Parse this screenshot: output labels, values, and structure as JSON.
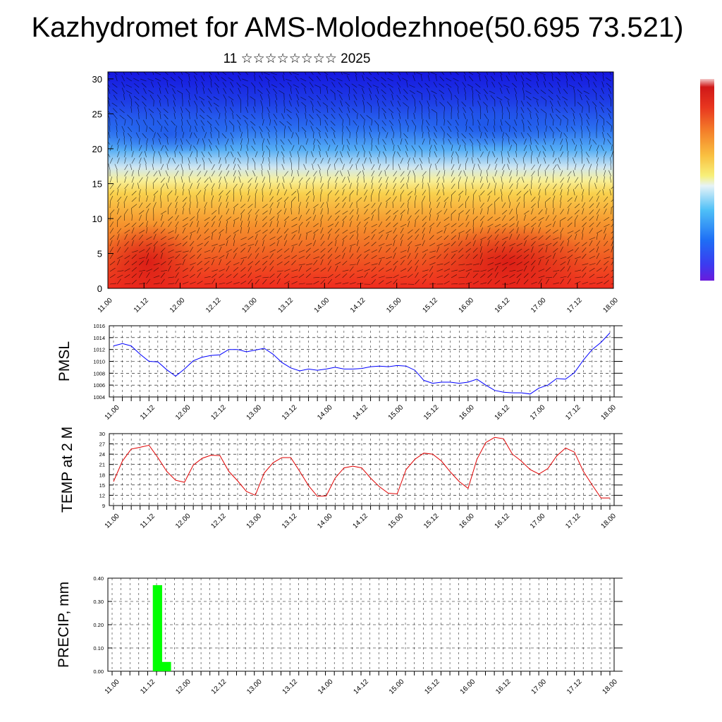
{
  "title": "Kazhydromet for AMS-Molodezhnoe(50.695 73.521)",
  "subtitle": "11 ☆☆☆☆☆☆☆☆ 2025",
  "colors": {
    "pmsl_line": "#0000ff",
    "temp_line": "#e00000",
    "precip_bar": "#00ff00",
    "grid": "#000000"
  },
  "chart_data": [
    {
      "type": "heatmap",
      "name": "cross-section",
      "xlabel": "",
      "ylabel": "",
      "x_tick_labels": [
        "11.00",
        "11.12",
        "12.00",
        "12.12",
        "13.00",
        "13.12",
        "14.00",
        "14.12",
        "15.00",
        "15.12",
        "16.00",
        "16.12",
        "17.00",
        "17.12",
        "18.00"
      ],
      "y_ticks": [
        0,
        5,
        10,
        15,
        20,
        25,
        30
      ],
      "ylim": [
        0,
        31
      ],
      "colorbar": [
        "#6a1bdc",
        "#3b3bf0",
        "#1e5ef5",
        "#2f8cf7",
        "#4fb6f7",
        "#bfe3f7",
        "#f7f7a8",
        "#f9e05a",
        "#f8b33a",
        "#f4872a",
        "#ef5a22",
        "#e8361f",
        "#d91c1c",
        "#c51a1a",
        "#f0c0c0"
      ],
      "wind_barbs": true
    },
    {
      "type": "line",
      "name": "pmsl",
      "ylabel": "PMSL",
      "ylim": [
        1004,
        1016
      ],
      "y_ticks": [
        1004,
        1006,
        1008,
        1010,
        1012,
        1014,
        1016
      ],
      "x_tick_labels": [
        "11.00",
        "11.12",
        "12.00",
        "12.12",
        "13.00",
        "13.12",
        "14.00",
        "14.12",
        "15.00",
        "15.12",
        "16.00",
        "16.12",
        "17.00",
        "17.12",
        "18.00"
      ],
      "values": [
        1012.6,
        1013.0,
        1012.6,
        1011.2,
        1010.0,
        1009.9,
        1008.6,
        1007.5,
        1008.7,
        1010.1,
        1010.7,
        1011.0,
        1011.1,
        1012.0,
        1012.0,
        1011.6,
        1011.9,
        1012.2,
        1011.2,
        1009.8,
        1008.9,
        1008.4,
        1008.7,
        1008.5,
        1008.7,
        1009.0,
        1008.7,
        1008.7,
        1008.8,
        1009.1,
        1009.2,
        1009.1,
        1009.3,
        1009.2,
        1008.5,
        1006.8,
        1006.3,
        1006.5,
        1006.5,
        1006.3,
        1006.5,
        1007.0,
        1006.0,
        1005.1,
        1004.8,
        1004.7,
        1004.7,
        1004.5,
        1005.5,
        1006.0,
        1007.1,
        1007.0,
        1008.1,
        1010.2,
        1012.0,
        1013.2,
        1014.8
      ]
    },
    {
      "type": "line",
      "name": "temp",
      "ylabel": "TEMP at 2 M",
      "ylim": [
        9,
        30
      ],
      "y_ticks": [
        9,
        12,
        15,
        18,
        21,
        24,
        27,
        30
      ],
      "x_tick_labels": [
        "11.00",
        "11.12",
        "12.00",
        "12.12",
        "13.00",
        "13.12",
        "14.00",
        "14.12",
        "15.00",
        "15.12",
        "16.00",
        "16.12",
        "17.00",
        "17.12",
        "18.00"
      ],
      "values": [
        16.0,
        22.0,
        25.5,
        26.0,
        26.6,
        23.0,
        19.0,
        16.4,
        15.8,
        20.8,
        22.8,
        23.7,
        23.6,
        19.0,
        16.2,
        13.1,
        12.0,
        18.5,
        21.5,
        23.0,
        23.0,
        19.0,
        14.8,
        11.7,
        11.8,
        17.0,
        20.0,
        20.5,
        20.0,
        17.0,
        14.5,
        12.6,
        12.4,
        19.5,
        22.5,
        24.3,
        24.0,
        22.0,
        18.8,
        16.0,
        14.0,
        22.5,
        27.4,
        28.9,
        28.5,
        24.0,
        22.0,
        19.5,
        18.2,
        19.8,
        23.5,
        25.8,
        24.6,
        19.0,
        15.0,
        11.2,
        11.2
      ]
    },
    {
      "type": "bar",
      "name": "precip",
      "ylabel": "PRECIP, mm",
      "ylim": [
        0,
        0.4
      ],
      "y_tick_labels": [
        "0.00",
        "0.10",
        "0.20",
        "0.30",
        "0.40"
      ],
      "x_tick_labels": [
        "11.00",
        "11.12",
        "12.00",
        "12.12",
        "13.00",
        "13.12",
        "14.00",
        "14.12",
        "15.00",
        "15.12",
        "16.00",
        "16.12",
        "17.00",
        "17.12",
        "18.00"
      ],
      "values": [
        0,
        0,
        0,
        0,
        0,
        0.37,
        0.04,
        0,
        0,
        0,
        0,
        0,
        0,
        0,
        0,
        0,
        0,
        0,
        0,
        0,
        0,
        0,
        0,
        0,
        0,
        0,
        0,
        0,
        0,
        0,
        0,
        0,
        0,
        0,
        0,
        0,
        0,
        0,
        0,
        0,
        0,
        0,
        0,
        0,
        0,
        0,
        0,
        0,
        0,
        0,
        0,
        0,
        0,
        0,
        0,
        0,
        0
      ]
    }
  ]
}
